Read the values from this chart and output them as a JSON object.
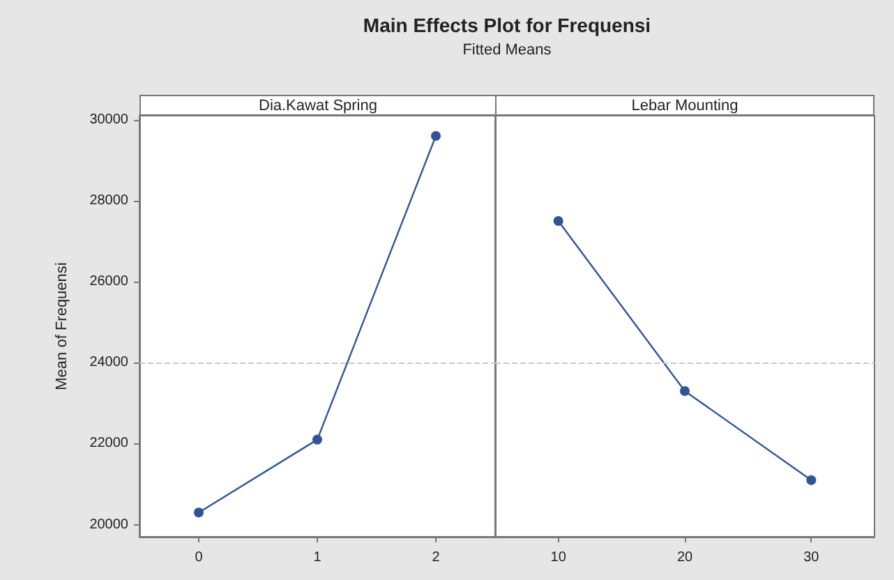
{
  "chart_data": [
    {
      "type": "line",
      "title": "Main Effects Plot for Frequensi",
      "subtitle": "Fitted Means",
      "ylabel": "Mean of Frequensi",
      "annotations": [
        "Dia.Kawat Spring"
      ],
      "categories": [
        "0",
        "1",
        "2"
      ],
      "series": [
        {
          "color": "#2f5597",
          "values": [
            20300,
            22100,
            29600
          ]
        }
      ],
      "ylim": [
        19700,
        30100
      ],
      "yticks": [
        20000,
        22000,
        24000,
        26000,
        28000,
        30000
      ],
      "marker": "circle",
      "line_style": "solid",
      "ref_lines": [
        {
          "axis": "y",
          "value": 24000,
          "color": "#c8c8c8",
          "line_style": "dashed"
        }
      ]
    },
    {
      "type": "line",
      "annotations": [
        "Lebar Mounting"
      ],
      "categories": [
        "10",
        "20",
        "30"
      ],
      "series": [
        {
          "color": "#2f5597",
          "values": [
            27500,
            23300,
            21100
          ]
        }
      ],
      "ylim": [
        19700,
        30100
      ],
      "yticks": [
        20000,
        22000,
        24000,
        26000,
        28000,
        30000
      ],
      "marker": "circle",
      "line_style": "solid",
      "tick_labels": "x",
      "ref_lines": [
        {
          "axis": "y",
          "value": 24000,
          "color": "#c8c8c8",
          "line_style": "dashed"
        }
      ]
    }
  ]
}
